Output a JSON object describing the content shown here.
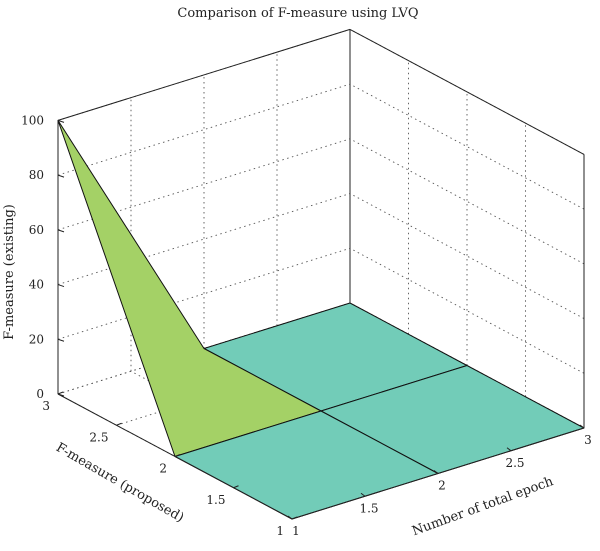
{
  "chart_data": {
    "type": "surface3d",
    "title": "Comparison of F-measure using LVQ",
    "xlabel": "Number of total epoch",
    "ylabel": "F-measure (proposed)",
    "zlabel": "F-measure (existing)",
    "x": [
      1,
      2,
      3
    ],
    "y": [
      1,
      2,
      3
    ],
    "z_grid": [
      [
        0,
        0,
        0
      ],
      [
        0,
        0,
        0
      ],
      [
        100,
        0,
        0
      ]
    ],
    "xlim": [
      1,
      3
    ],
    "ylim": [
      1,
      3
    ],
    "zlim": [
      0,
      100
    ],
    "x_ticks": [
      "1",
      "1.5",
      "2",
      "2.5",
      "3"
    ],
    "y_ticks": [
      "1",
      "1.5",
      "2",
      "2.5",
      "3"
    ],
    "z_ticks": [
      "0",
      "20",
      "40",
      "60",
      "80",
      "100"
    ],
    "grid": true,
    "colors": {
      "high": "#a4d166",
      "low": "#72ccb8",
      "edge": "#111111"
    }
  }
}
